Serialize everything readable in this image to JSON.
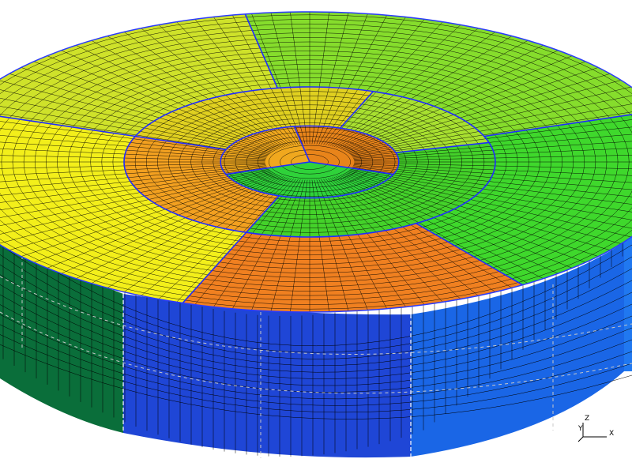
{
  "viewport": {
    "background": "#ffffff"
  },
  "mesh": {
    "edge_color": "#000000",
    "partition_line_color": "#1f2bff",
    "top_partitions": [
      {
        "ring": "inner",
        "color": "#2fd23a"
      },
      {
        "ring": "inner",
        "color": "#f0a81e"
      },
      {
        "ring": "inner",
        "color": "#e8841a"
      },
      {
        "ring": "middle",
        "color": "#f2a020"
      },
      {
        "ring": "middle",
        "color": "#e0d020"
      },
      {
        "ring": "middle",
        "color": "#a8e030"
      },
      {
        "ring": "middle",
        "color": "#44d22a"
      },
      {
        "ring": "outer",
        "color": "#f08020"
      },
      {
        "ring": "outer",
        "color": "#f3ef1a"
      },
      {
        "ring": "outer",
        "color": "#cfe22a"
      },
      {
        "ring": "outer",
        "color": "#86dd2c"
      },
      {
        "ring": "outer",
        "color": "#3fd82c"
      }
    ],
    "side_partitions": [
      {
        "color": "#0a6e3a"
      },
      {
        "color": "#1f46d6"
      },
      {
        "color": "#1a66e6"
      },
      {
        "color": "#2078f0"
      }
    ]
  },
  "axes_triad": {
    "labels": {
      "z": "Z",
      "y": "Y",
      "x": "X"
    },
    "icon": "xyz-axes-icon"
  }
}
